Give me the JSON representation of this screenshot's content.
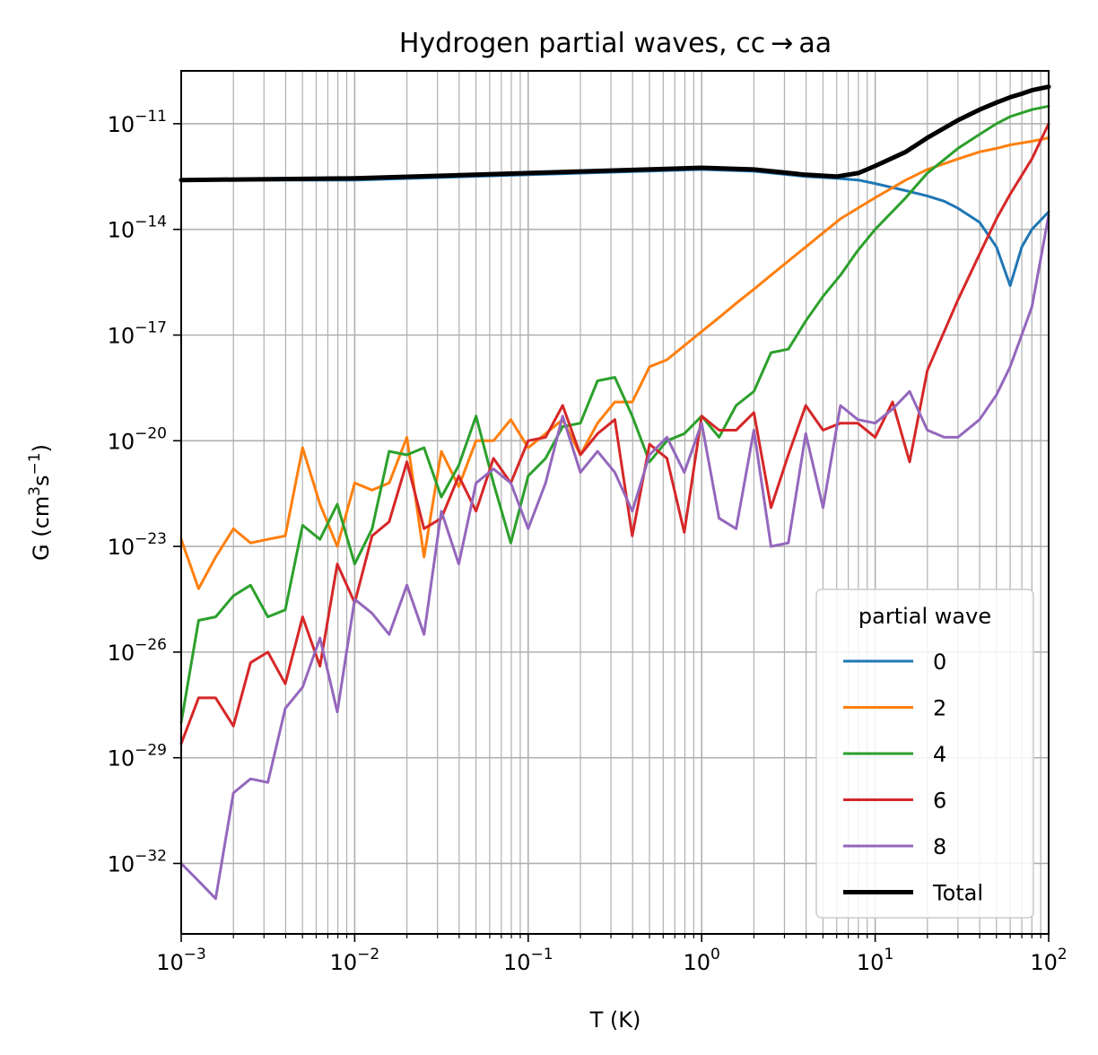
{
  "chart_data": {
    "type": "line",
    "title": "Hydrogen partial waves, cc → aa",
    "xlabel": "T (K)",
    "ylabel": {
      "base": "G (cm",
      "sup1": "3",
      "mid": "s",
      "sup2": "−1",
      "end": ")"
    },
    "xscale": "log",
    "yscale": "log",
    "xlim": [
      0.001,
      100
    ],
    "ylim_log10": [
      -34.0,
      -9.5
    ],
    "grid": true,
    "xticks": [
      {
        "exp": -3,
        "base": "10",
        "sup": "−3"
      },
      {
        "exp": -2,
        "base": "10",
        "sup": "−2"
      },
      {
        "exp": -1,
        "base": "10",
        "sup": "−1"
      },
      {
        "exp": 0,
        "base": "10",
        "sup": "0"
      },
      {
        "exp": 1,
        "base": "10",
        "sup": "1"
      },
      {
        "exp": 2,
        "base": "10",
        "sup": "2"
      }
    ],
    "yticks": [
      {
        "exp": -11,
        "base": "10",
        "sup": "−11"
      },
      {
        "exp": -14,
        "base": "10",
        "sup": "−14"
      },
      {
        "exp": -17,
        "base": "10",
        "sup": "−17"
      },
      {
        "exp": -20,
        "base": "10",
        "sup": "−20"
      },
      {
        "exp": -23,
        "base": "10",
        "sup": "−23"
      },
      {
        "exp": -26,
        "base": "10",
        "sup": "−26"
      },
      {
        "exp": -29,
        "base": "10",
        "sup": "−29"
      },
      {
        "exp": -32,
        "base": "10",
        "sup": "−32"
      }
    ],
    "legend": {
      "title": "partial wave",
      "position": "lower-right"
    },
    "series": [
      {
        "name": "0",
        "color": "#1f77b4",
        "width": 3,
        "x": [
          0.001,
          0.01,
          0.1,
          1,
          2,
          4,
          6,
          8,
          10,
          15,
          20,
          25,
          30,
          40,
          50,
          60,
          70,
          80,
          100
        ],
        "log10y": [
          -12.6,
          -12.6,
          -12.45,
          -12.3,
          -12.35,
          -12.5,
          -12.55,
          -12.6,
          -12.7,
          -12.9,
          -13.05,
          -13.2,
          -13.4,
          -13.8,
          -14.5,
          -15.6,
          -14.5,
          -14.0,
          -13.5
        ]
      },
      {
        "name": "2",
        "color": "#ff7f0e",
        "width": 3,
        "x": [
          0.001,
          0.00126,
          0.00158,
          0.002,
          0.00251,
          0.00316,
          0.00398,
          0.00501,
          0.00631,
          0.00794,
          0.01,
          0.0126,
          0.0158,
          0.02,
          0.0251,
          0.0316,
          0.0398,
          0.0501,
          0.0631,
          0.0794,
          0.1,
          0.126,
          0.158,
          0.2,
          0.251,
          0.316,
          0.398,
          0.501,
          0.631,
          0.794,
          1,
          1.26,
          1.58,
          2,
          2.51,
          3.16,
          3.98,
          5.01,
          6.31,
          7.94,
          10,
          15,
          20,
          30,
          40,
          50,
          60,
          80,
          100
        ],
        "log10y": [
          -22.8,
          -24.2,
          -23.3,
          -22.5,
          -22.9,
          -22.8,
          -22.7,
          -20.2,
          -21.8,
          -23.0,
          -21.2,
          -21.4,
          -21.2,
          -19.9,
          -23.3,
          -20.3,
          -21.3,
          -20.0,
          -20.0,
          -19.4,
          -20.2,
          -19.8,
          -19.4,
          -20.4,
          -19.5,
          -18.9,
          -18.9,
          -17.9,
          -17.7,
          -17.3,
          -16.9,
          -16.5,
          -16.1,
          -15.7,
          -15.3,
          -14.9,
          -14.5,
          -14.1,
          -13.7,
          -13.4,
          -13.1,
          -12.6,
          -12.3,
          -12.0,
          -11.8,
          -11.7,
          -11.6,
          -11.5,
          -11.4
        ]
      },
      {
        "name": "4",
        "color": "#2ca02c",
        "width": 3,
        "x": [
          0.001,
          0.00126,
          0.00158,
          0.002,
          0.00251,
          0.00316,
          0.00398,
          0.00501,
          0.00631,
          0.00794,
          0.01,
          0.0126,
          0.0158,
          0.02,
          0.0251,
          0.0316,
          0.0398,
          0.0501,
          0.0631,
          0.0794,
          0.1,
          0.126,
          0.158,
          0.2,
          0.251,
          0.316,
          0.398,
          0.501,
          0.631,
          0.794,
          1,
          1.26,
          1.58,
          2,
          2.51,
          3.16,
          3.98,
          5.01,
          6.31,
          7.94,
          10,
          15,
          20,
          30,
          40,
          50,
          60,
          80,
          100
        ],
        "log10y": [
          -28.0,
          -25.1,
          -25.0,
          -24.4,
          -24.1,
          -25.0,
          -24.8,
          -22.4,
          -22.8,
          -21.8,
          -23.5,
          -22.5,
          -20.3,
          -20.4,
          -20.2,
          -21.6,
          -20.7,
          -19.3,
          -21.2,
          -22.9,
          -21.0,
          -20.5,
          -19.6,
          -19.5,
          -18.3,
          -18.2,
          -19.3,
          -20.6,
          -20.0,
          -19.8,
          -19.3,
          -19.9,
          -19.0,
          -18.6,
          -17.5,
          -17.4,
          -16.6,
          -15.9,
          -15.3,
          -14.6,
          -14.0,
          -13.1,
          -12.4,
          -11.7,
          -11.3,
          -11.0,
          -10.8,
          -10.6,
          -10.5
        ]
      },
      {
        "name": "6",
        "color": "#d62728",
        "width": 3,
        "x": [
          0.001,
          0.00126,
          0.00158,
          0.002,
          0.00251,
          0.00316,
          0.00398,
          0.00501,
          0.00631,
          0.00794,
          0.01,
          0.0126,
          0.0158,
          0.02,
          0.0251,
          0.0316,
          0.0398,
          0.0501,
          0.0631,
          0.0794,
          0.1,
          0.126,
          0.158,
          0.2,
          0.251,
          0.316,
          0.398,
          0.501,
          0.631,
          0.794,
          1,
          1.26,
          1.58,
          2,
          2.51,
          3.16,
          3.98,
          5.01,
          6.31,
          7.94,
          10,
          12.6,
          15.8,
          20,
          30,
          40,
          50,
          60,
          80,
          100
        ],
        "log10y": [
          -28.6,
          -27.3,
          -27.3,
          -28.1,
          -26.3,
          -26.0,
          -26.9,
          -25.0,
          -26.4,
          -23.5,
          -24.6,
          -22.7,
          -22.3,
          -20.6,
          -22.5,
          -22.2,
          -21.0,
          -22.0,
          -20.5,
          -21.2,
          -20.0,
          -19.9,
          -19.0,
          -20.4,
          -19.8,
          -19.4,
          -22.7,
          -20.1,
          -20.5,
          -22.6,
          -19.3,
          -19.7,
          -19.7,
          -19.2,
          -21.9,
          -20.4,
          -19.0,
          -19.7,
          -19.5,
          -19.5,
          -19.9,
          -18.9,
          -20.6,
          -18.0,
          -16.0,
          -14.7,
          -13.7,
          -13.0,
          -12.0,
          -11.0
        ]
      },
      {
        "name": "8",
        "color": "#9467bd",
        "width": 3,
        "x": [
          0.001,
          0.00126,
          0.00158,
          0.002,
          0.00251,
          0.00316,
          0.00398,
          0.00501,
          0.00631,
          0.00794,
          0.01,
          0.0126,
          0.0158,
          0.02,
          0.0251,
          0.0316,
          0.0398,
          0.0501,
          0.0631,
          0.0794,
          0.1,
          0.126,
          0.158,
          0.2,
          0.251,
          0.316,
          0.398,
          0.501,
          0.631,
          0.794,
          1,
          1.26,
          1.58,
          2,
          2.51,
          3.16,
          3.98,
          5.01,
          6.31,
          7.94,
          10,
          12.6,
          15.8,
          20,
          25,
          30,
          40,
          50,
          60,
          80,
          100
        ],
        "log10y": [
          -32.0,
          -32.5,
          -33.0,
          -30.0,
          -29.6,
          -29.7,
          -27.6,
          -27.0,
          -25.6,
          -27.7,
          -24.5,
          -24.9,
          -25.5,
          -24.1,
          -25.5,
          -22.0,
          -23.5,
          -21.2,
          -20.8,
          -21.2,
          -22.5,
          -21.2,
          -19.3,
          -20.9,
          -20.3,
          -20.9,
          -22.0,
          -20.4,
          -19.9,
          -20.9,
          -19.5,
          -22.2,
          -22.5,
          -19.7,
          -23.0,
          -22.9,
          -19.8,
          -21.9,
          -19.0,
          -19.4,
          -19.5,
          -19.1,
          -18.6,
          -19.7,
          -19.9,
          -19.9,
          -19.4,
          -18.7,
          -17.9,
          -16.2,
          -13.6
        ]
      },
      {
        "name": "Total",
        "color": "#000000",
        "width": 5,
        "x": [
          0.001,
          0.01,
          0.1,
          1,
          2,
          4,
          6,
          8,
          10,
          15,
          20,
          30,
          40,
          50,
          60,
          70,
          80,
          100
        ],
        "log10y": [
          -12.6,
          -12.55,
          -12.4,
          -12.25,
          -12.3,
          -12.45,
          -12.5,
          -12.4,
          -12.2,
          -11.8,
          -11.4,
          -10.9,
          -10.6,
          -10.4,
          -10.25,
          -10.15,
          -10.05,
          -9.95
        ]
      }
    ]
  }
}
